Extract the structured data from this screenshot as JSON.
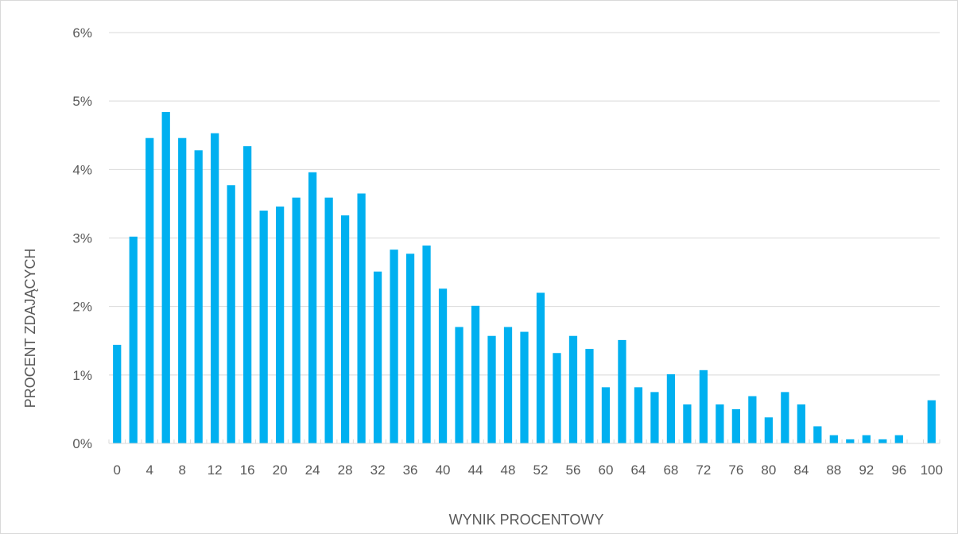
{
  "chart_data": {
    "type": "bar",
    "title": "",
    "xlabel": "WYNIK PROCENTOWY",
    "ylabel": "PROCENT ZDAJĄCYCH",
    "ylim": [
      0,
      6
    ],
    "grid": true,
    "legend": "none",
    "bar_color": "#00b0f0",
    "grid_color": "#d9d9d9",
    "y_ticks": [
      "0%",
      "1%",
      "2%",
      "3%",
      "4%",
      "5%",
      "6%"
    ],
    "x_tick_labels": [
      "0",
      "4",
      "8",
      "12",
      "16",
      "20",
      "24",
      "28",
      "32",
      "36",
      "40",
      "44",
      "48",
      "52",
      "56",
      "60",
      "64",
      "68",
      "72",
      "76",
      "80",
      "84",
      "88",
      "92",
      "96",
      "100"
    ],
    "categories": [
      0,
      2,
      4,
      6,
      8,
      10,
      12,
      14,
      16,
      18,
      20,
      22,
      24,
      26,
      28,
      30,
      32,
      34,
      36,
      38,
      40,
      42,
      44,
      46,
      48,
      50,
      52,
      54,
      56,
      58,
      60,
      62,
      64,
      66,
      68,
      70,
      72,
      74,
      76,
      78,
      80,
      82,
      84,
      86,
      88,
      90,
      92,
      94,
      96,
      98,
      100
    ],
    "values": [
      1.44,
      3.02,
      4.46,
      4.84,
      4.46,
      4.28,
      4.53,
      3.77,
      4.34,
      3.4,
      3.46,
      3.59,
      3.96,
      3.59,
      3.33,
      3.65,
      2.51,
      2.83,
      2.77,
      2.89,
      2.26,
      1.7,
      2.01,
      1.57,
      1.7,
      1.63,
      2.2,
      1.32,
      1.57,
      1.38,
      0.82,
      1.51,
      0.82,
      0.75,
      1.01,
      0.57,
      1.07,
      0.57,
      0.5,
      0.69,
      0.38,
      0.75,
      0.57,
      0.25,
      0.12,
      0.06,
      0.12,
      0.06,
      0.12,
      0.0,
      0.63
    ]
  }
}
